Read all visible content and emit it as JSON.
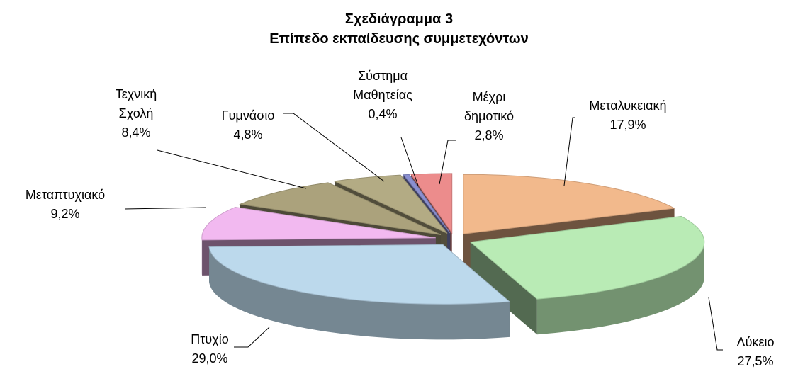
{
  "chart_data": {
    "type": "pie3d",
    "title": "Σχεδιάγραμμα 3",
    "subtitle": "Επίπεδο εκπαίδευσης συμμετεχόντων",
    "categories": [
      "Μεταλυκειακή",
      "Λύκειο",
      "Πτυχίο",
      "Μεταπτυχιακό",
      "Τεχνική Σχολή",
      "Γυμνάσιο",
      "Σύστημα Μαθητείας",
      "Μέχρι δημοτικό"
    ],
    "values": [
      17.9,
      27.5,
      29.0,
      9.2,
      8.4,
      4.8,
      0.4,
      2.8
    ],
    "value_labels": [
      "17,9%",
      "27,5%",
      "29,0%",
      "9,2%",
      "8,4%",
      "4,8%",
      "0,4%",
      "2,8%"
    ],
    "colors": [
      "#f2b98c",
      "#b9ebb5",
      "#bcd9ec",
      "#f2b9f0",
      "#aba27c",
      "#b3ab84",
      "#8a8fd0",
      "#ec8c8c"
    ]
  }
}
